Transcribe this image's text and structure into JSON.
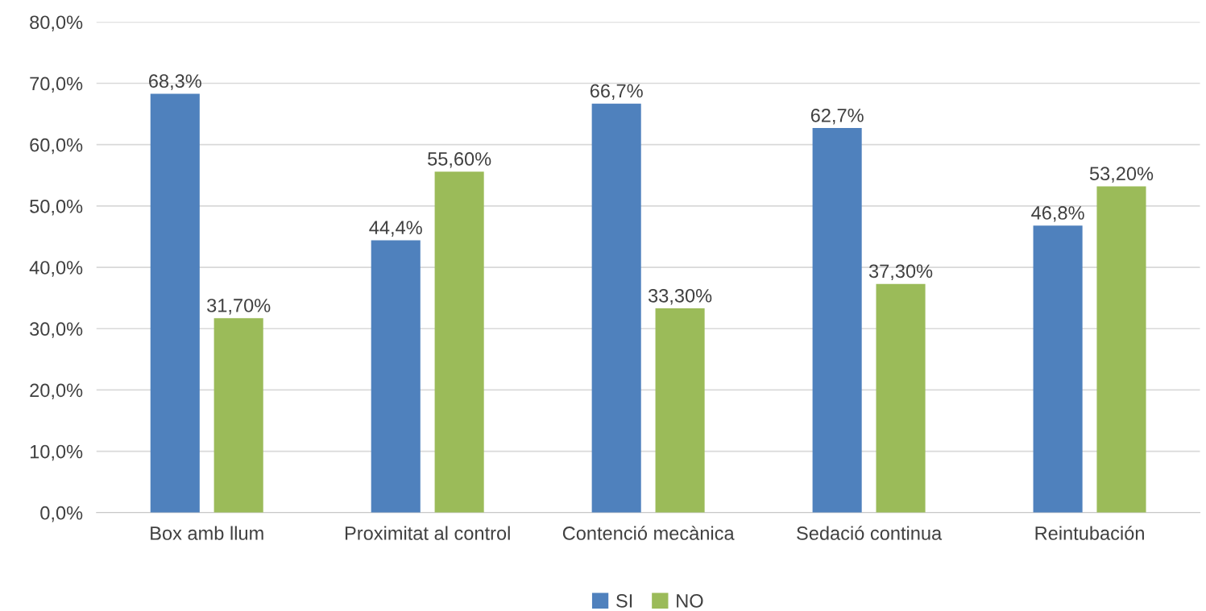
{
  "chart_data": {
    "type": "bar",
    "categories": [
      "Box amb llum",
      "Proximitat al control",
      "Contenció mecànica",
      "Sedació continua",
      "Reintubación"
    ],
    "series": [
      {
        "name": "SI",
        "color": "#4f81bd",
        "values": [
          68.3,
          44.4,
          66.7,
          62.7,
          46.8
        ],
        "value_labels": [
          "68,3%",
          "44,4%",
          "66,7%",
          "62,7%",
          "46,8%"
        ]
      },
      {
        "name": "NO",
        "color": "#9bbb59",
        "values": [
          31.7,
          55.6,
          33.3,
          37.3,
          53.2
        ],
        "value_labels": [
          "31,70%",
          "55,60%",
          "33,30%",
          "37,30%",
          "53,20%"
        ]
      }
    ],
    "ylim": [
      0,
      80
    ],
    "yticks": [
      {
        "value": 0,
        "label": "0,0%"
      },
      {
        "value": 10,
        "label": "10,0%"
      },
      {
        "value": 20,
        "label": "20,0%"
      },
      {
        "value": 30,
        "label": "30,0%"
      },
      {
        "value": 40,
        "label": "40,0%"
      },
      {
        "value": 50,
        "label": "50,0%"
      },
      {
        "value": 60,
        "label": "60,0%"
      },
      {
        "value": 70,
        "label": "70,0%"
      },
      {
        "value": 80,
        "label": "80,0%"
      }
    ],
    "grid": "y",
    "legend": "bottom"
  }
}
